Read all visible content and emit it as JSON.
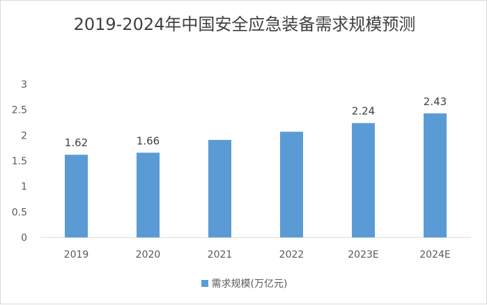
{
  "chart_data": {
    "type": "bar",
    "title": "2019-2024年中国安全应急装备需求规模预测",
    "categories": [
      "2019",
      "2020",
      "2021",
      "2022",
      "2023E",
      "2024E"
    ],
    "series": [
      {
        "name": "需求规模(万亿元)",
        "values": [
          1.62,
          1.66,
          1.91,
          2.07,
          2.24,
          2.43
        ],
        "data_labels": [
          "1.62",
          "1.66",
          "",
          "",
          "2.24",
          "2.43"
        ],
        "color": "#5b9bd5"
      }
    ],
    "ylim": [
      0,
      3
    ],
    "yticks": [
      "0",
      "0.5",
      "1",
      "1.5",
      "2",
      "2.5",
      "3"
    ],
    "xlabel": "",
    "ylabel": "",
    "grid": false,
    "legend": "bottom"
  }
}
